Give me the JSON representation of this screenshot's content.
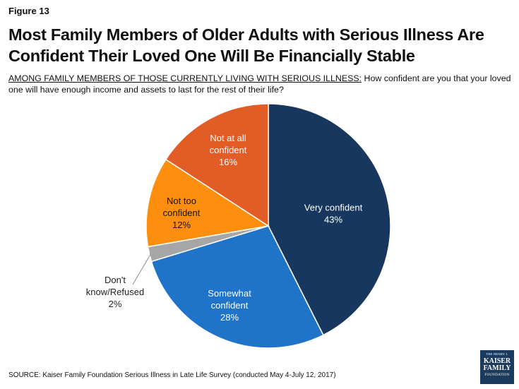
{
  "figure_label": "Figure 13",
  "title": "Most Family Members of Older Adults with Serious Illness Are Confident Their Loved One Will Be Financially Stable",
  "subtitle": {
    "lead": "AMONG FAMILY MEMBERS OF THOSE CURRENTLY LIVING WITH SERIOUS ILLNESS:",
    "question": " How confident are you that your loved one will have enough income and assets to last for the rest of their life?"
  },
  "source": "SOURCE: Kaiser Family Foundation Serious Illness in Late Life Survey (conducted May 4-July 12, 2017)",
  "logo": {
    "line1": "THE HENRY J.",
    "line2": "KAISER",
    "line3": "FAMILY",
    "line4": "FOUNDATION"
  },
  "chart_data": {
    "type": "pie",
    "slices": [
      {
        "label": "Very confident",
        "label_lines": [
          "Very confident"
        ],
        "value": 43,
        "value_label": "43%",
        "color": "#17375e",
        "text_color": "#ffffff"
      },
      {
        "label": "Somewhat confident",
        "label_lines": [
          "Somewhat",
          "confident"
        ],
        "value": 28,
        "value_label": "28%",
        "color": "#1f74c9",
        "text_color": "#ffffff"
      },
      {
        "label": "Don't know/Refused",
        "label_lines": [
          "Don't",
          "know/Refused"
        ],
        "value": 2,
        "value_label": "2%",
        "color": "#a6a6a6",
        "text_color": "#222222"
      },
      {
        "label": "Not too confident",
        "label_lines": [
          "Not too",
          "confident"
        ],
        "value": 12,
        "value_label": "12%",
        "color": "#fd8e0e",
        "text_color": "#111111"
      },
      {
        "label": "Not at all confident",
        "label_lines": [
          "Not at all",
          "confident"
        ],
        "value": 16,
        "value_label": "16%",
        "color": "#e25c26",
        "text_color": "#ffffff"
      }
    ]
  }
}
